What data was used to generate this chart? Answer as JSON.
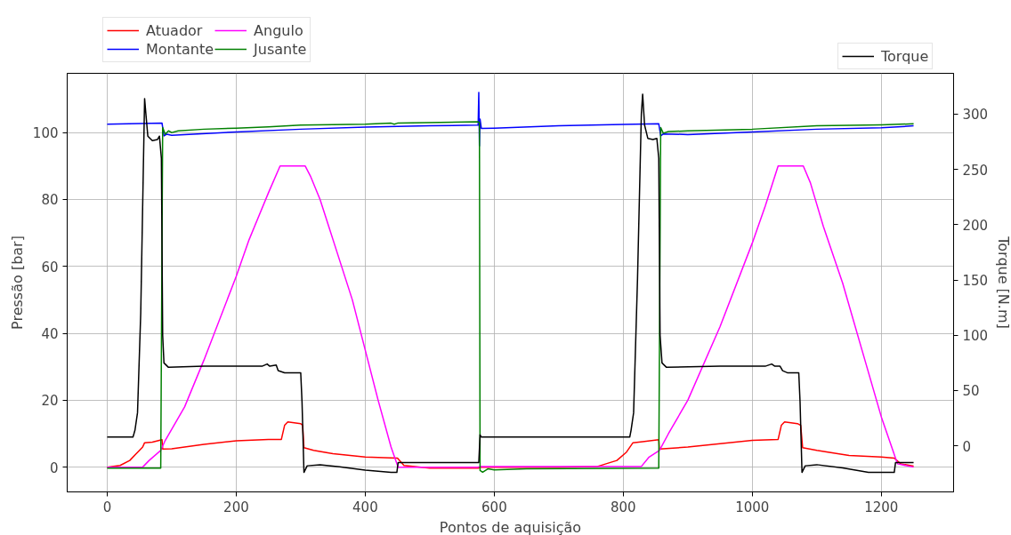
{
  "chart_data": {
    "type": "line",
    "xlabel": "Pontos de aquisição",
    "ylabel": "Pressão [bar]",
    "y2label": "Torque [N.m]",
    "xlim": [
      -62,
      1312
    ],
    "xticks": [
      0,
      200,
      400,
      600,
      800,
      1000,
      1200
    ],
    "ylim": [
      -7.4,
      117.7
    ],
    "yticks": [
      0,
      20,
      40,
      60,
      80,
      100
    ],
    "y2lim": [
      -41.6,
      336.8
    ],
    "y2ticks": [
      0,
      50,
      100,
      150,
      200,
      250,
      300
    ],
    "grid": true,
    "legend": "top",
    "marker": "none",
    "line_style": "solid",
    "series": [
      {
        "name": "Atuador",
        "color": "#ff0000",
        "x": [
          0,
          20,
          35,
          45,
          55,
          58,
          70,
          85,
          86,
          100,
          150,
          200,
          250,
          270,
          275,
          280,
          300,
          303,
          305,
          320,
          350,
          400,
          450,
          460,
          500,
          575,
          580,
          700,
          760,
          790,
          805,
          815,
          830,
          855,
          856,
          900,
          950,
          1000,
          1040,
          1045,
          1050,
          1070,
          1075,
          1078,
          1100,
          1150,
          1200,
          1220,
          1230,
          1250
        ],
        "values": [
          0,
          0.5,
          2,
          4,
          6,
          7.3,
          7.5,
          8.2,
          5.4,
          5.5,
          6.8,
          7.9,
          8.3,
          8.3,
          12.5,
          13.5,
          13,
          12.5,
          5.8,
          5,
          4,
          3,
          2.7,
          0.5,
          -0.3,
          -0.3,
          0,
          0,
          0.2,
          2,
          4.5,
          7.3,
          7.6,
          8.2,
          5.4,
          6,
          7,
          8,
          8.3,
          12.5,
          13.5,
          13,
          12.5,
          5.8,
          5,
          3.5,
          3,
          2.7,
          1,
          0.3
        ]
      },
      {
        "name": "Angulo",
        "color": "#ff00ff",
        "x": [
          0,
          55,
          65,
          83,
          90,
          120,
          150,
          200,
          220,
          250,
          268,
          307,
          315,
          330,
          350,
          380,
          400,
          420,
          440,
          451,
          575,
          578,
          828,
          840,
          856,
          870,
          900,
          950,
          1000,
          1020,
          1040,
          1079,
          1090,
          1110,
          1140,
          1170,
          1200,
          1225,
          1250
        ],
        "values": [
          0,
          0,
          2,
          5,
          8,
          18,
          32,
          57,
          68,
          82,
          90,
          90,
          87,
          80,
          68,
          50,
          35,
          20,
          6,
          0,
          0,
          0.2,
          0.2,
          3,
          5,
          10,
          20,
          42,
          67,
          78,
          90,
          90,
          85,
          72,
          55,
          35,
          15,
          1,
          0
        ]
      },
      {
        "name": "Montante",
        "color": "#0000ff",
        "x": [
          0,
          85,
          88,
          92,
          100,
          200,
          300,
          400,
          500,
          575,
          576,
          577,
          578,
          580,
          600,
          700,
          800,
          855,
          858,
          862,
          900,
          1000,
          1100,
          1200,
          1250
        ],
        "values": [
          102.5,
          102.8,
          99,
          99.5,
          99.2,
          100.2,
          101,
          101.6,
          102,
          102.2,
          112,
          96,
          104,
          101.2,
          101.3,
          102,
          102.4,
          102.6,
          99,
          99.6,
          99.4,
          100.2,
          101,
          101.4,
          102
        ]
      },
      {
        "name": "Jusante",
        "color": "#008000",
        "x": [
          0,
          83,
          86,
          90,
          95,
          100,
          110,
          150,
          200,
          250,
          300,
          400,
          440,
          445,
          450,
          575,
          577,
          578,
          582,
          590,
          600,
          650,
          855,
          858,
          862,
          870,
          900,
          1000,
          1100,
          1200,
          1250
        ],
        "values": [
          -0.3,
          -0.3,
          101.5,
          99.5,
          100.5,
          100,
          100.5,
          101,
          101.3,
          101.7,
          102.2,
          102.5,
          102.8,
          102.5,
          102.8,
          103.2,
          103,
          -1,
          -1.5,
          -0.5,
          -0.8,
          -0.5,
          -0.3,
          101.5,
          99.8,
          100.3,
          100.5,
          101,
          102,
          102.3,
          102.6
        ]
      },
      {
        "name": "Torque",
        "color": "#000000",
        "axis": "y2",
        "x": [
          0,
          40,
          43,
          47,
          52,
          56,
          58,
          60,
          63,
          70,
          78,
          81,
          84,
          86,
          88,
          95,
          150,
          200,
          240,
          248,
          252,
          262,
          265,
          275,
          300,
          302,
          305,
          310,
          330,
          360,
          400,
          440,
          449,
          451,
          500,
          576,
          578,
          580,
          700,
          810,
          812,
          816,
          822,
          828,
          830,
          833,
          838,
          846,
          852,
          855,
          857,
          860,
          867,
          950,
          1020,
          1030,
          1035,
          1043,
          1047,
          1055,
          1072,
          1074,
          1077,
          1082,
          1100,
          1140,
          1180,
          1220,
          1222,
          1250
        ],
        "values": [
          8,
          8,
          14,
          30,
          120,
          250,
          314,
          300,
          280,
          276,
          277,
          280,
          260,
          100,
          75,
          71,
          72,
          72,
          72,
          74,
          72,
          73,
          68,
          66,
          66,
          40,
          -24,
          -18,
          -17,
          -19,
          -22,
          -24,
          -24,
          -15,
          -15,
          -15,
          10,
          8,
          8,
          8,
          14,
          30,
          150,
          300,
          318,
          290,
          278,
          277,
          278,
          260,
          100,
          75,
          71,
          72,
          72,
          74,
          72,
          72,
          68,
          66,
          66,
          40,
          -24,
          -18,
          -17,
          -20,
          -24,
          -24,
          -15,
          -15
        ]
      }
    ]
  }
}
